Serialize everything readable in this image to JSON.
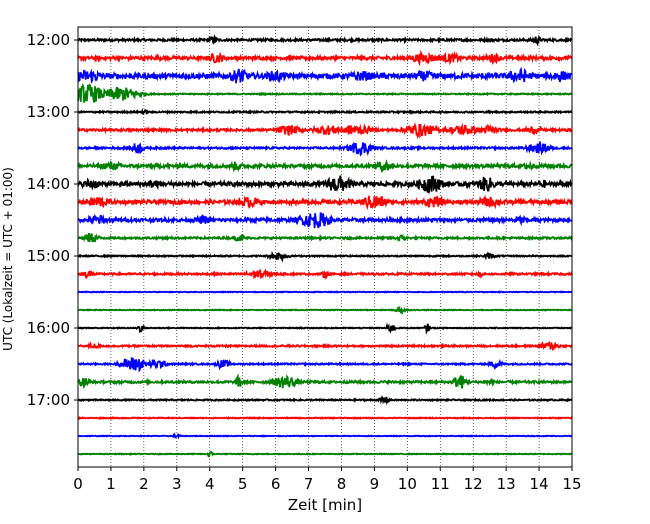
{
  "chart_data": {
    "type": "line",
    "title": "",
    "xlabel": "Zeit  [min]",
    "ylabel": "UTC (Lokalzeit = UTC + 01:00)",
    "xlim": [
      0,
      15
    ],
    "x_ticks": [
      0,
      1,
      2,
      3,
      4,
      5,
      6,
      7,
      8,
      9,
      10,
      11,
      12,
      13,
      14,
      15
    ],
    "x_tick_labels": [
      "0",
      "1",
      "2",
      "3",
      "4",
      "5",
      "6",
      "7",
      "8",
      "9",
      "10",
      "11",
      "12",
      "13",
      "14",
      "15"
    ],
    "y_tick_labels": [
      "12:00",
      "13:00",
      "14:00",
      "15:00",
      "16:00",
      "17:00"
    ],
    "grid": "vertical dotted at each minute",
    "legend": "none",
    "trace_interval_min": 15,
    "color_cycle": [
      "#000000",
      "#ff0000",
      "#0000ff",
      "#008000"
    ],
    "traces": [
      {
        "time": "12:00",
        "color": "#000000",
        "base_amp": 0.12,
        "bursts": [
          [
            4.1,
            0.45,
            0.15
          ],
          [
            13.9,
            0.5,
            0.15
          ]
        ]
      },
      {
        "time": "12:15",
        "color": "#ff0000",
        "base_amp": 0.18,
        "bursts": [
          [
            4.2,
            0.55,
            0.3
          ],
          [
            10.5,
            0.6,
            0.5
          ],
          [
            11.3,
            0.5,
            0.4
          ],
          [
            12.6,
            0.5,
            0.3
          ]
        ]
      },
      {
        "time": "12:30",
        "color": "#0000ff",
        "base_amp": 0.28,
        "bursts": [
          [
            0.3,
            0.7,
            0.5
          ],
          [
            4.9,
            0.9,
            0.3
          ],
          [
            6.0,
            0.6,
            0.4
          ],
          [
            8.6,
            0.6,
            0.4
          ],
          [
            10.5,
            0.6,
            0.4
          ],
          [
            13.4,
            0.8,
            0.4
          ],
          [
            14.6,
            0.7,
            0.3
          ]
        ]
      },
      {
        "time": "12:45",
        "color": "#008000",
        "base_amp": 0.06,
        "bursts": [
          [
            0.3,
            1.1,
            0.5
          ],
          [
            1.3,
            0.8,
            0.6
          ]
        ]
      },
      {
        "time": "13:00",
        "color": "#000000",
        "base_amp": 0.08,
        "bursts": [
          [
            2.0,
            0.3,
            0.1
          ]
        ]
      },
      {
        "time": "13:15",
        "color": "#ff0000",
        "base_amp": 0.12,
        "bursts": [
          [
            6.4,
            0.55,
            0.4
          ],
          [
            7.6,
            0.55,
            0.5
          ],
          [
            8.4,
            0.6,
            0.5
          ],
          [
            10.4,
            0.7,
            0.5
          ],
          [
            11.7,
            0.6,
            0.5
          ],
          [
            12.5,
            0.5,
            0.3
          ],
          [
            13.8,
            0.4,
            0.3
          ]
        ]
      },
      {
        "time": "13:30",
        "color": "#0000ff",
        "base_amp": 0.1,
        "bursts": [
          [
            1.8,
            0.65,
            0.2
          ],
          [
            8.6,
            0.75,
            0.4
          ],
          [
            14.0,
            0.6,
            0.4
          ]
        ]
      },
      {
        "time": "13:45",
        "color": "#008000",
        "base_amp": 0.18,
        "bursts": [
          [
            1.0,
            0.45,
            0.4
          ],
          [
            4.8,
            0.5,
            0.2
          ],
          [
            9.3,
            0.6,
            0.3
          ],
          [
            13.7,
            0.45,
            0.2
          ]
        ]
      },
      {
        "time": "14:00",
        "color": "#000000",
        "base_amp": 0.22,
        "bursts": [
          [
            0.4,
            0.6,
            0.3
          ],
          [
            2.3,
            0.5,
            0.2
          ],
          [
            7.9,
            1.0,
            0.4
          ],
          [
            10.7,
            1.05,
            0.4
          ],
          [
            12.4,
            0.85,
            0.3
          ],
          [
            14.1,
            0.5,
            0.2
          ]
        ]
      },
      {
        "time": "14:15",
        "color": "#ff0000",
        "base_amp": 0.2,
        "bursts": [
          [
            0.6,
            0.65,
            0.4
          ],
          [
            5.2,
            0.6,
            0.4
          ],
          [
            9.0,
            0.85,
            0.4
          ],
          [
            10.8,
            0.6,
            0.4
          ],
          [
            12.5,
            0.6,
            0.4
          ]
        ]
      },
      {
        "time": "14:30",
        "color": "#0000ff",
        "base_amp": 0.18,
        "bursts": [
          [
            0.6,
            0.6,
            0.3
          ],
          [
            3.8,
            0.45,
            0.3
          ],
          [
            7.2,
            0.95,
            0.5
          ],
          [
            13.4,
            0.45,
            0.3
          ]
        ]
      },
      {
        "time": "14:45",
        "color": "#008000",
        "base_amp": 0.1,
        "bursts": [
          [
            0.4,
            0.6,
            0.25
          ],
          [
            4.9,
            0.35,
            0.2
          ],
          [
            9.8,
            0.35,
            0.2
          ]
        ]
      },
      {
        "time": "15:00",
        "color": "#000000",
        "base_amp": 0.07,
        "bursts": [
          [
            6.1,
            0.5,
            0.3
          ],
          [
            12.5,
            0.3,
            0.2
          ]
        ]
      },
      {
        "time": "15:15",
        "color": "#ff0000",
        "base_amp": 0.1,
        "bursts": [
          [
            0.3,
            0.45,
            0.2
          ],
          [
            5.5,
            0.5,
            0.4
          ],
          [
            7.5,
            0.45,
            0.1
          ],
          [
            12.2,
            0.35,
            0.1
          ]
        ]
      },
      {
        "time": "15:30",
        "color": "#0000ff",
        "base_amp": 0.04,
        "bursts": []
      },
      {
        "time": "15:45",
        "color": "#008000",
        "base_amp": 0.04,
        "bursts": [
          [
            9.8,
            0.3,
            0.2
          ]
        ]
      },
      {
        "time": "16:00",
        "color": "#000000",
        "base_amp": 0.05,
        "bursts": [
          [
            1.9,
            0.45,
            0.1
          ],
          [
            9.5,
            0.45,
            0.15
          ],
          [
            10.6,
            0.5,
            0.08
          ]
        ]
      },
      {
        "time": "16:15",
        "color": "#ff0000",
        "base_amp": 0.09,
        "bursts": [
          [
            0.5,
            0.3,
            0.2
          ],
          [
            14.3,
            0.45,
            0.3
          ]
        ]
      },
      {
        "time": "16:30",
        "color": "#0000ff",
        "base_amp": 0.08,
        "bursts": [
          [
            1.7,
            0.85,
            0.4
          ],
          [
            2.4,
            0.5,
            0.3
          ],
          [
            4.4,
            0.5,
            0.2
          ],
          [
            12.7,
            0.45,
            0.2
          ]
        ]
      },
      {
        "time": "16:45",
        "color": "#008000",
        "base_amp": 0.12,
        "bursts": [
          [
            0.2,
            0.55,
            0.2
          ],
          [
            4.9,
            0.8,
            0.1
          ],
          [
            6.3,
            0.75,
            0.4
          ],
          [
            11.6,
            0.85,
            0.2
          ],
          [
            12.5,
            0.35,
            0.2
          ]
        ]
      },
      {
        "time": "17:00",
        "color": "#000000",
        "base_amp": 0.07,
        "bursts": [
          [
            9.3,
            0.45,
            0.15
          ]
        ]
      },
      {
        "time": "17:15",
        "color": "#ff0000",
        "base_amp": 0.05,
        "bursts": []
      },
      {
        "time": "17:30",
        "color": "#0000ff",
        "base_amp": 0.04,
        "bursts": [
          [
            3.0,
            0.25,
            0.1
          ]
        ]
      },
      {
        "time": "17:45",
        "color": "#008000",
        "base_amp": 0.04,
        "bursts": [
          [
            4.0,
            0.35,
            0.1
          ]
        ]
      }
    ]
  }
}
